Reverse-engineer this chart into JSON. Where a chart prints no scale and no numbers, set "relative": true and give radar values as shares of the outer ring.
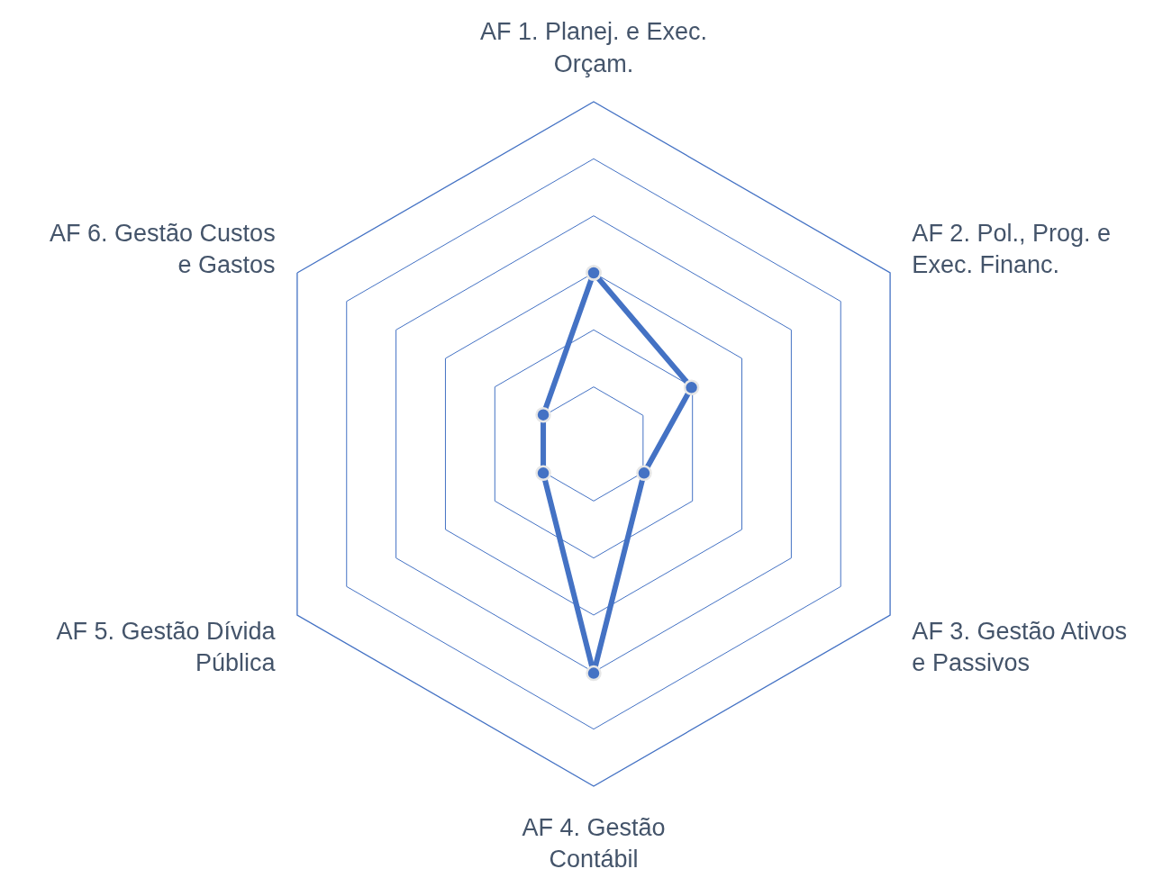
{
  "chart_data": {
    "type": "radar",
    "relative": true,
    "categories": [
      "AF 1. Planej. e Exec.\nOrçam.",
      "AF 2. Pol., Prog. e\nExec. Financ.",
      "AF 3. Gestão Ativos\ne Passivos",
      "AF 4. Gestão\nContábil",
      "AF 5. Gestão Dívida\nPública",
      "AF 6. Gestão Custos\ne Gastos"
    ],
    "series": [
      {
        "color": "#4472c4",
        "values": [
          0.5,
          0.33,
          0.17,
          0.67,
          0.17,
          0.17
        ]
      }
    ],
    "grid": true,
    "marker": "circle",
    "line_style": "solid"
  }
}
